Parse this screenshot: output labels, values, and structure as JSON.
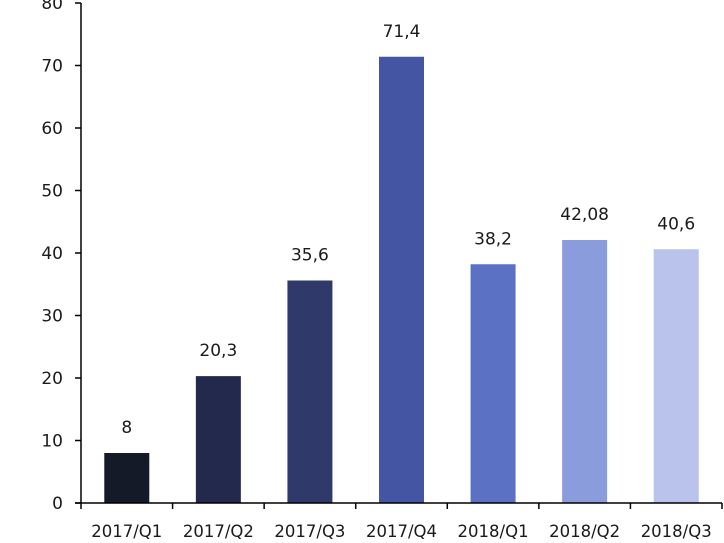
{
  "chart_data": {
    "type": "bar",
    "categories": [
      "2017/Q1",
      "2017/Q2",
      "2017/Q3",
      "2017/Q4",
      "2018/Q1",
      "2018/Q2",
      "2018/Q3"
    ],
    "values": [
      8,
      20.3,
      35.6,
      71.4,
      38.2,
      42.08,
      40.6
    ],
    "data_labels": [
      "8",
      "20,3",
      "35,6",
      "71,4",
      "38,2",
      "42,08",
      "40,6"
    ],
    "bar_colors": [
      "#141a28",
      "#23294d",
      "#2f3a6b",
      "#4455a3",
      "#5b72c4",
      "#8a9cdc",
      "#b9c3ec"
    ],
    "axis_color": "#000000",
    "ylim": [
      0,
      80
    ],
    "yticks": [
      "0",
      "10",
      "20",
      "30",
      "40",
      "50",
      "60",
      "70",
      "80"
    ],
    "title": "",
    "xlabel": "",
    "ylabel": "",
    "grid": false,
    "legend": "none"
  }
}
